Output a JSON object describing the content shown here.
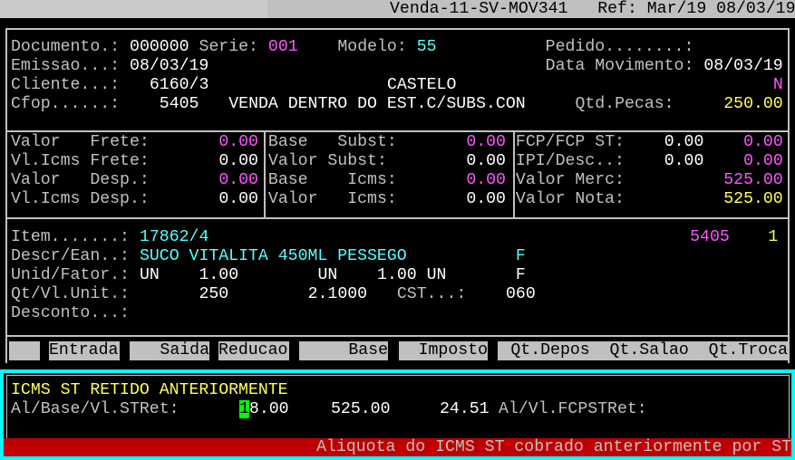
{
  "title_bar": {
    "text": "Venda-11-SV-MOV341   Ref: Mar/19 08/03/19"
  },
  "header": {
    "documento_label": "Documento.: ",
    "documento": "000000",
    "serie_label": " Serie: ",
    "serie": "001",
    "modelo_label": "Modelo: ",
    "modelo": "55",
    "pedido_label": "Pedido........:",
    "emissao_label": "Emissao...: ",
    "emissao": "08/03/19",
    "data_mov_label": "Data Movimento: ",
    "data_mov": "08/03/19",
    "cliente_label": "Cliente...:",
    "cliente_code": "6160/3",
    "cliente_name": "CASTELO",
    "cliente_flag": "N",
    "cfop_label": "Cfop......:",
    "cfop": "5405",
    "cfop_desc": "VENDA DENTRO DO EST.C/SUBS.CON",
    "qtd_pecas_label": "Qtd.Pecas:",
    "qtd_pecas": "250.00"
  },
  "totals": {
    "col1": [
      {
        "label": "Valor   Frete:",
        "value": "0.00"
      },
      {
        "label": "Vl.Icms Frete:",
        "value": "0.00"
      },
      {
        "label": "Valor   Desp.:",
        "value": "0.00"
      },
      {
        "label": "Vl.Icms Desp.:",
        "value": "0.00"
      }
    ],
    "col2": [
      {
        "label": "Base   Subst:",
        "value": "0.00"
      },
      {
        "label": "Valor Subst:",
        "value": "0.00"
      },
      {
        "label": "Base    Icms:",
        "value": "0.00"
      },
      {
        "label": "Valor   Icms:",
        "value": "0.00"
      }
    ],
    "col3": [
      {
        "label": "FCP/FCP ST:",
        "value1": "0.00",
        "value2": "0.00"
      },
      {
        "label": "IPI/Desc..:",
        "value1": "0.00",
        "value2": "0.00"
      },
      {
        "label": "Valor Merc:",
        "value2": "525.00"
      },
      {
        "label": "Valor Nota:",
        "value2": "525.00"
      }
    ]
  },
  "item": {
    "item_label": "Item.......:",
    "item": "17862/4",
    "cfop": "5405",
    "seq": "1",
    "descr_label": "Descr/Ean..:",
    "descr": "SUCO VITALITA 450ML PESSEGO",
    "descr_flag": "F",
    "unid_label": "Unid/Fator.:",
    "unid1": "UN",
    "fator1": "1.00",
    "unid2": "UN",
    "fator2": "1.00 UN",
    "unid_flag": "F",
    "qt_label": "Qt/Vl.Unit.:",
    "qt": "250",
    "vl_unit": "2.1000",
    "cst_label": "CST...:",
    "cst": "060",
    "desconto_label": "Desconto...:"
  },
  "columns": [
    "",
    "Entrada",
    "Saida",
    "Reducao",
    "Base",
    "Imposto",
    "Qt.Depos  Qt.Salao  Qt.Troca"
  ],
  "st_panel": {
    "title": "ICMS ST RETIDO ANTERIORMENTE",
    "label": "Al/Base/Vl.STRet:",
    "aliquota_cursor": "1",
    "aliquota_rest": "8.00",
    "base": "525.00",
    "valor": "24.51",
    "fcp_label": "Al/Vl.FCPSTRet:"
  },
  "status_bar": {
    "text": "Aliquota do ICMS ST cobrado anteriormente por ST"
  },
  "colors": {
    "background": "#000000",
    "label": "#c0c0c0",
    "value": "#ffffff",
    "magenta": "#ff55ff",
    "cyan": "#55ffff",
    "yellow": "#ffff55",
    "panel_border": "#00ffff",
    "status_bg": "#c00000",
    "cursor": "#00ff00"
  }
}
